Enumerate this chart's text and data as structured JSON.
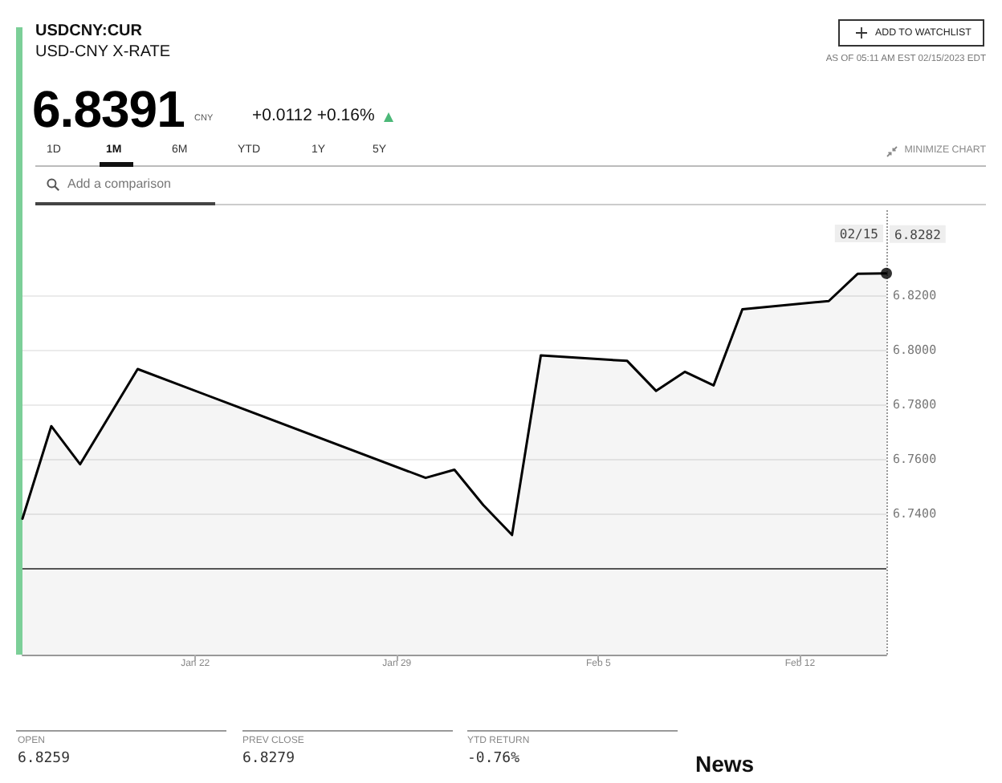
{
  "chart_data": {
    "type": "area",
    "title": "USDCNY:CUR",
    "subtitle": "USD-CNY X-RATE",
    "series": [
      {
        "color": "#000000",
        "x": [
          "2023-01-16",
          "2023-01-17",
          "2023-01-18",
          "2023-01-20",
          "2023-01-30",
          "2023-01-31",
          "2023-02-01",
          "2023-02-02",
          "2023-02-03",
          "2023-02-06",
          "2023-02-07",
          "2023-02-08",
          "2023-02-09",
          "2023-02-10",
          "2023-02-13",
          "2023-02-14",
          "2023-02-15"
        ],
        "values": [
          6.738,
          6.772,
          6.758,
          6.793,
          6.753,
          6.756,
          6.743,
          6.732,
          6.798,
          6.796,
          6.785,
          6.792,
          6.787,
          6.815,
          6.818,
          6.828,
          6.8282
        ]
      },
      {
        "type": "scatter",
        "marker": "circle",
        "color": "#000000",
        "x": [
          "2023-02-15"
        ],
        "values": [
          6.8282
        ]
      }
    ],
    "marker": "none",
    "xlim": [
      "2023-01-16",
      "2023-02-15"
    ],
    "xticks": [
      {
        "value": "2023-01-22",
        "label": "Jan 22"
      },
      {
        "value": "2023-01-29",
        "label": "Jan 29"
      },
      {
        "value": "2023-02-05",
        "label": "Feb 5"
      },
      {
        "value": "2023-02-12",
        "label": "Feb 12"
      }
    ],
    "ylim": [
      6.688,
      6.852
    ],
    "yticks": [
      {
        "value": 6.74,
        "label": "6.7400"
      },
      {
        "value": 6.76,
        "label": "6.7600"
      },
      {
        "value": 6.78,
        "label": "6.7800"
      },
      {
        "value": 6.8,
        "label": "6.8000"
      },
      {
        "value": 6.82,
        "label": "6.8200"
      }
    ],
    "grid": "y",
    "ref_lines": [
      {
        "axis": "x",
        "value": "2023-02-15",
        "label": "02/15",
        "line_style": "dotted",
        "color": "#999999"
      },
      {
        "axis": "y",
        "value": 6.72,
        "color": "#555555"
      }
    ],
    "annotations": [
      "6.8391",
      "CNY",
      "+0.0112 +0.16%",
      "ADD TO WATCHLIST",
      "AS OF 05:11 AM EST 02/15/2023 EDT",
      "1D",
      "1M",
      "6M",
      "YTD",
      "1Y",
      "5Y",
      "MINIMIZE CHART",
      "Add a comparison",
      {
        "text": "6.8282",
        "x": "2023-02-15",
        "y": 6.8282
      },
      "OPEN",
      "6.8259",
      "PREV CLOSE",
      "6.8279",
      "YTD RETURN",
      "-0.76%",
      "News"
    ]
  }
}
